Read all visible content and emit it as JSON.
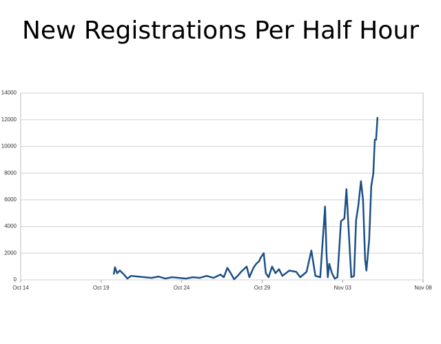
{
  "chart_data": {
    "type": "line",
    "title": "New Registrations Per Half Hour",
    "x": [
      5.78,
      5.86,
      5.99,
      6.16,
      6.42,
      6.63,
      6.85,
      7.27,
      7.7,
      8.13,
      8.56,
      8.99,
      9.41,
      9.84,
      10.27,
      10.7,
      11.13,
      11.55,
      11.98,
      12.41,
      12.62,
      12.84,
      13.05,
      13.26,
      13.48,
      13.69,
      14.04,
      14.21,
      14.46,
      14.63,
      14.81,
      14.93,
      15.1,
      15.23,
      15.4,
      15.62,
      15.83,
      16.05,
      16.26,
      16.69,
      17.12,
      17.37,
      17.76,
      18.06,
      18.31,
      18.61,
      18.91,
      19.0,
      19.08,
      19.17,
      19.34,
      19.51,
      19.68,
      19.9,
      20.11,
      20.24,
      20.41,
      20.54,
      20.71,
      20.84,
      20.97,
      21.14,
      21.27,
      21.4,
      21.48,
      21.65,
      21.78,
      21.91,
      22.0,
      22.08,
      22.17
    ],
    "values": [
      400,
      950,
      500,
      700,
      400,
      100,
      300,
      250,
      200,
      150,
      250,
      100,
      200,
      150,
      100,
      200,
      150,
      300,
      150,
      400,
      200,
      900,
      500,
      50,
      300,
      600,
      1000,
      200,
      900,
      1200,
      1400,
      1700,
      2000,
      500,
      200,
      1000,
      500,
      800,
      300,
      700,
      600,
      200,
      600,
      2200,
      300,
      200,
      5500,
      2000,
      200,
      1200,
      500,
      100,
      200,
      4400,
      4600,
      6800,
      3000,
      200,
      300,
      4500,
      5500,
      7400,
      6000,
      1500,
      700,
      3000,
      7000,
      8000,
      10500,
      10500,
      12200
    ],
    "color": "#1b4f86",
    "xlim": [
      0,
      25
    ],
    "xticks": [
      {
        "value": 0,
        "label": "Oct 14"
      },
      {
        "value": 5,
        "label": "Oct 19"
      },
      {
        "value": 10,
        "label": "Oct 24"
      },
      {
        "value": 15,
        "label": "Oct 29"
      },
      {
        "value": 20,
        "label": "Nov 03"
      },
      {
        "value": 25,
        "label": "Nov 08"
      }
    ],
    "ylim": [
      0,
      14000
    ],
    "yticks": [
      0,
      2000,
      4000,
      6000,
      8000,
      10000,
      12000,
      14000
    ],
    "grid": true
  }
}
